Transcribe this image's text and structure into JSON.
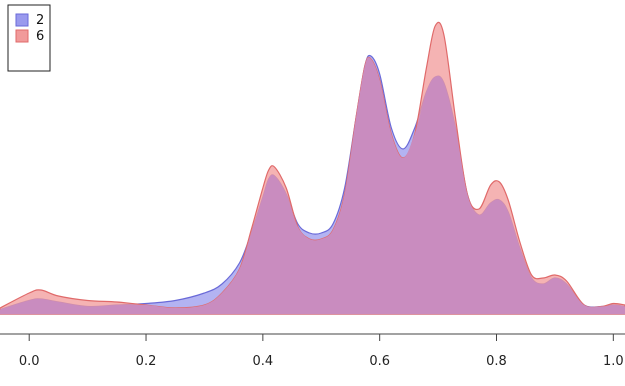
{
  "chart_data": {
    "type": "area",
    "title": "",
    "xlabel": "",
    "ylabel": "",
    "xlim": [
      -0.05,
      1.02
    ],
    "ylim": [
      0,
      1
    ],
    "x_ticks": [
      0.0,
      0.2,
      0.4,
      0.6,
      0.8,
      1.0
    ],
    "x_tick_labels": [
      "0.0",
      "0.2",
      "0.4",
      "0.6",
      "0.8",
      "1.0"
    ],
    "grid": false,
    "legend_position": "top-left",
    "series": [
      {
        "name": "2",
        "fill_color": "#9a9aee",
        "stroke_color": "#6a6ad8",
        "points": [
          [
            -0.05,
            0.015
          ],
          [
            0.0,
            0.045
          ],
          [
            0.02,
            0.05
          ],
          [
            0.05,
            0.04
          ],
          [
            0.1,
            0.025
          ],
          [
            0.15,
            0.03
          ],
          [
            0.2,
            0.035
          ],
          [
            0.25,
            0.045
          ],
          [
            0.3,
            0.07
          ],
          [
            0.33,
            0.1
          ],
          [
            0.36,
            0.17
          ],
          [
            0.38,
            0.27
          ],
          [
            0.4,
            0.39
          ],
          [
            0.41,
            0.45
          ],
          [
            0.42,
            0.46
          ],
          [
            0.44,
            0.4
          ],
          [
            0.46,
            0.3
          ],
          [
            0.48,
            0.27
          ],
          [
            0.5,
            0.27
          ],
          [
            0.52,
            0.3
          ],
          [
            0.54,
            0.42
          ],
          [
            0.56,
            0.66
          ],
          [
            0.575,
            0.83
          ],
          [
            0.585,
            0.86
          ],
          [
            0.6,
            0.8
          ],
          [
            0.62,
            0.62
          ],
          [
            0.64,
            0.55
          ],
          [
            0.66,
            0.62
          ],
          [
            0.68,
            0.74
          ],
          [
            0.695,
            0.79
          ],
          [
            0.71,
            0.77
          ],
          [
            0.73,
            0.62
          ],
          [
            0.75,
            0.4
          ],
          [
            0.77,
            0.33
          ],
          [
            0.79,
            0.37
          ],
          [
            0.805,
            0.38
          ],
          [
            0.82,
            0.34
          ],
          [
            0.84,
            0.22
          ],
          [
            0.86,
            0.12
          ],
          [
            0.88,
            0.1
          ],
          [
            0.9,
            0.12
          ],
          [
            0.92,
            0.1
          ],
          [
            0.95,
            0.03
          ],
          [
            0.98,
            0.025
          ],
          [
            1.0,
            0.03
          ],
          [
            1.02,
            0.025
          ]
        ]
      },
      {
        "name": "6",
        "fill_color": "#f19a9a",
        "stroke_color": "#e06a6a",
        "points": [
          [
            -0.05,
            0.02
          ],
          [
            0.0,
            0.07
          ],
          [
            0.02,
            0.08
          ],
          [
            0.05,
            0.06
          ],
          [
            0.1,
            0.045
          ],
          [
            0.15,
            0.04
          ],
          [
            0.2,
            0.03
          ],
          [
            0.25,
            0.02
          ],
          [
            0.3,
            0.03
          ],
          [
            0.33,
            0.07
          ],
          [
            0.36,
            0.15
          ],
          [
            0.38,
            0.28
          ],
          [
            0.4,
            0.42
          ],
          [
            0.41,
            0.48
          ],
          [
            0.42,
            0.49
          ],
          [
            0.44,
            0.42
          ],
          [
            0.46,
            0.29
          ],
          [
            0.48,
            0.25
          ],
          [
            0.5,
            0.25
          ],
          [
            0.52,
            0.28
          ],
          [
            0.54,
            0.4
          ],
          [
            0.56,
            0.66
          ],
          [
            0.575,
            0.83
          ],
          [
            0.585,
            0.85
          ],
          [
            0.6,
            0.78
          ],
          [
            0.62,
            0.6
          ],
          [
            0.64,
            0.52
          ],
          [
            0.66,
            0.6
          ],
          [
            0.68,
            0.82
          ],
          [
            0.695,
            0.96
          ],
          [
            0.71,
            0.93
          ],
          [
            0.73,
            0.65
          ],
          [
            0.75,
            0.4
          ],
          [
            0.77,
            0.35
          ],
          [
            0.79,
            0.43
          ],
          [
            0.805,
            0.44
          ],
          [
            0.82,
            0.38
          ],
          [
            0.84,
            0.24
          ],
          [
            0.86,
            0.13
          ],
          [
            0.88,
            0.12
          ],
          [
            0.9,
            0.13
          ],
          [
            0.92,
            0.11
          ],
          [
            0.95,
            0.03
          ],
          [
            0.98,
            0.025
          ],
          [
            1.0,
            0.035
          ],
          [
            1.02,
            0.03
          ]
        ]
      }
    ],
    "overlap_color": "#c98cbf"
  }
}
